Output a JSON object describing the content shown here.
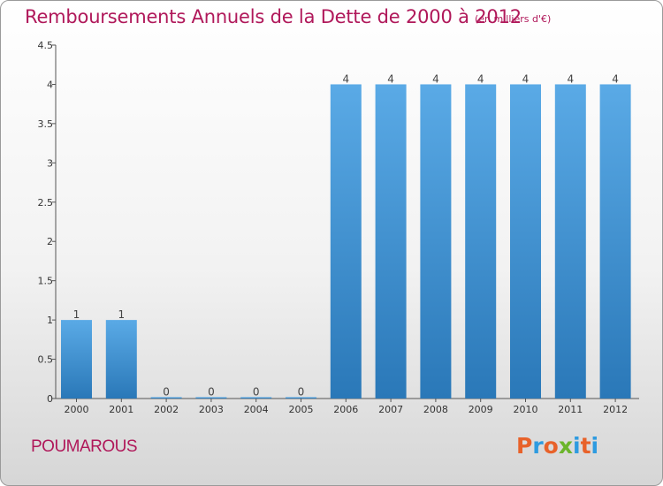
{
  "title": "Remboursements Annuels de la Dette de 2000 à 2012",
  "unit": "(en milliers d'€)",
  "commune": "POUMAROUS",
  "logo": {
    "text": "Proxiti",
    "colors": [
      "#e8622a",
      "#2e9be0",
      "#e8622a",
      "#6bb52b",
      "#2e9be0",
      "#e8622a",
      "#2e9be0"
    ]
  },
  "colors": {
    "bar_top": "#5aaae6",
    "bar_bottom": "#2a78b8",
    "title": "#b0185a"
  },
  "chart_data": {
    "type": "bar",
    "categories": [
      "2000",
      "2001",
      "2002",
      "2003",
      "2004",
      "2005",
      "2006",
      "2007",
      "2008",
      "2009",
      "2010",
      "2011",
      "2012"
    ],
    "values": [
      1,
      1,
      0,
      0,
      0,
      0,
      4,
      4,
      4,
      4,
      4,
      4,
      4
    ],
    "value_labels": [
      "1",
      "1",
      "0",
      "0",
      "0",
      "0",
      "4",
      "4",
      "4",
      "4",
      "4",
      "4",
      "4"
    ],
    "yticks": [
      "0",
      "0.5",
      "1",
      "1.5",
      "2",
      "2.5",
      "3",
      "3.5",
      "4",
      "4.5"
    ],
    "ylim": [
      0,
      4.5
    ],
    "grid": false,
    "legend": "none"
  }
}
